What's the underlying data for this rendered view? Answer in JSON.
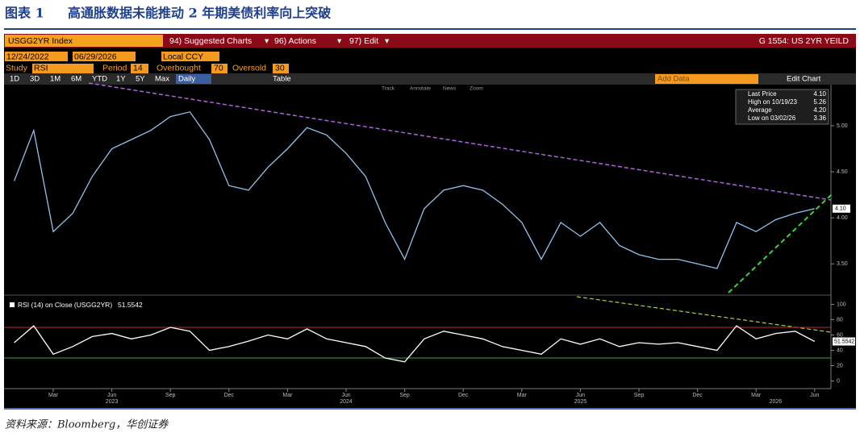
{
  "figure_label": "图表 1",
  "title": "高通胀数据未能推动 2 年期美债利率向上突破",
  "terminal": {
    "ticker": "USGG2YR Index",
    "menus": [
      "94) Suggested Charts",
      "96) Actions",
      "97) Edit"
    ],
    "chart_title": "G 1554: US 2YR YEILD",
    "start_date": "12/24/2022",
    "end_date": "06/29/2026",
    "currency": "Local CCY",
    "study_label": "Study",
    "study": "RSI",
    "period_label": "Period",
    "period": 14,
    "overbought_label": "Overbought",
    "overbought": 70,
    "oversold_label": "Oversold",
    "oversold": 30,
    "ranges": [
      "1D",
      "3D",
      "1M",
      "6M",
      "YTD",
      "1Y",
      "5Y",
      "Max"
    ],
    "frequency": "Daily",
    "table": "Table",
    "add_data": "Add Data",
    "edit_chart": "Edit Chart",
    "tools": [
      "Track",
      "Annotate",
      "News",
      "Zoom"
    ],
    "legend": [
      {
        "label": "Last Price",
        "value": "4.10"
      },
      {
        "label": "High on 10/19/23",
        "value": "5.26"
      },
      {
        "label": "Average",
        "value": "4.20"
      },
      {
        "label": "Low on 03/02/26",
        "value": "3.36"
      }
    ],
    "rsi_title": "RSI (14) on Close (USGG2YR)"
  },
  "chart_data": [
    {
      "type": "line",
      "color": "#8ec3f0",
      "x": [
        "2023-01",
        "2023-02",
        "2023-03",
        "2023-04",
        "2023-05",
        "2023-06",
        "2023-07",
        "2023-08",
        "2023-09",
        "2023-10",
        "2023-11",
        "2023-12",
        "2024-01",
        "2024-02",
        "2024-03",
        "2024-04",
        "2024-05",
        "2024-06",
        "2024-07",
        "2024-08",
        "2024-09",
        "2024-10",
        "2024-11",
        "2024-12",
        "2025-01",
        "2025-02",
        "2025-03",
        "2025-04",
        "2025-05",
        "2025-06",
        "2025-07",
        "2025-08",
        "2025-09",
        "2025-10",
        "2025-11",
        "2025-12",
        "2026-01",
        "2026-02",
        "2026-03",
        "2026-04",
        "2026-05",
        "2026-06"
      ],
      "values": [
        4.4,
        4.95,
        3.85,
        4.05,
        4.45,
        4.75,
        4.85,
        4.95,
        5.1,
        5.15,
        4.85,
        4.35,
        4.3,
        4.55,
        4.75,
        4.98,
        4.9,
        4.7,
        4.45,
        3.95,
        3.55,
        4.1,
        4.3,
        4.35,
        4.3,
        4.15,
        3.95,
        3.55,
        3.95,
        3.8,
        3.95,
        3.7,
        3.6,
        3.55,
        3.55,
        3.5,
        3.45,
        3.95,
        3.85,
        3.98,
        4.05,
        4.1
      ],
      "last_label": "4.10",
      "xlim": [
        "2023-01",
        "2026-07"
      ],
      "xticks": [
        {
          "value": "2023-03",
          "label": "Mar"
        },
        {
          "value": "2023-06",
          "label": "Jun"
        },
        {
          "value": "2023-09",
          "label": "Sep"
        },
        {
          "value": "2023-12",
          "label": "Dec"
        },
        {
          "value": "2024-03",
          "label": "Mar"
        },
        {
          "value": "2024-06",
          "label": "Jun"
        },
        {
          "value": "2024-09",
          "label": "Sep"
        },
        {
          "value": "2024-12",
          "label": "Dec"
        },
        {
          "value": "2025-03",
          "label": "Mar"
        },
        {
          "value": "2025-06",
          "label": "Jun"
        },
        {
          "value": "2025-09",
          "label": "Sep"
        },
        {
          "value": "2025-12",
          "label": "Dec"
        },
        {
          "value": "2026-03",
          "label": "Mar"
        },
        {
          "value": "2026-06",
          "label": "Jun"
        }
      ],
      "xtick_years": [
        {
          "value": "2023-06",
          "label": "2023"
        },
        {
          "value": "2024-06",
          "label": "2024"
        },
        {
          "value": "2025-06",
          "label": "2025"
        },
        {
          "value": "2026-04",
          "label": "2026"
        }
      ],
      "ylim": [
        3.17,
        5.42
      ],
      "yticks": [
        {
          "value": 3.5,
          "label": "3.50"
        },
        {
          "value": 4.0,
          "label": "4.00"
        },
        {
          "value": 4.5,
          "label": "4.50"
        },
        {
          "value": 5.0,
          "label": "5.00"
        }
      ]
    },
    {
      "type": "line",
      "color": "#ffffff",
      "values": [
        50,
        72,
        35,
        45,
        58,
        62,
        55,
        60,
        70,
        65,
        40,
        45,
        52,
        60,
        55,
        68,
        55,
        50,
        45,
        30,
        25,
        55,
        65,
        60,
        55,
        45,
        40,
        35,
        55,
        48,
        55,
        45,
        50,
        48,
        50,
        45,
        40,
        72,
        55,
        62,
        65,
        51.5542
      ],
      "ylim": [
        -10,
        110
      ],
      "yticks": [
        0,
        20,
        40,
        60,
        80,
        100
      ]
    }
  ],
  "source": "资料来源：Bloomberg，华创证券"
}
